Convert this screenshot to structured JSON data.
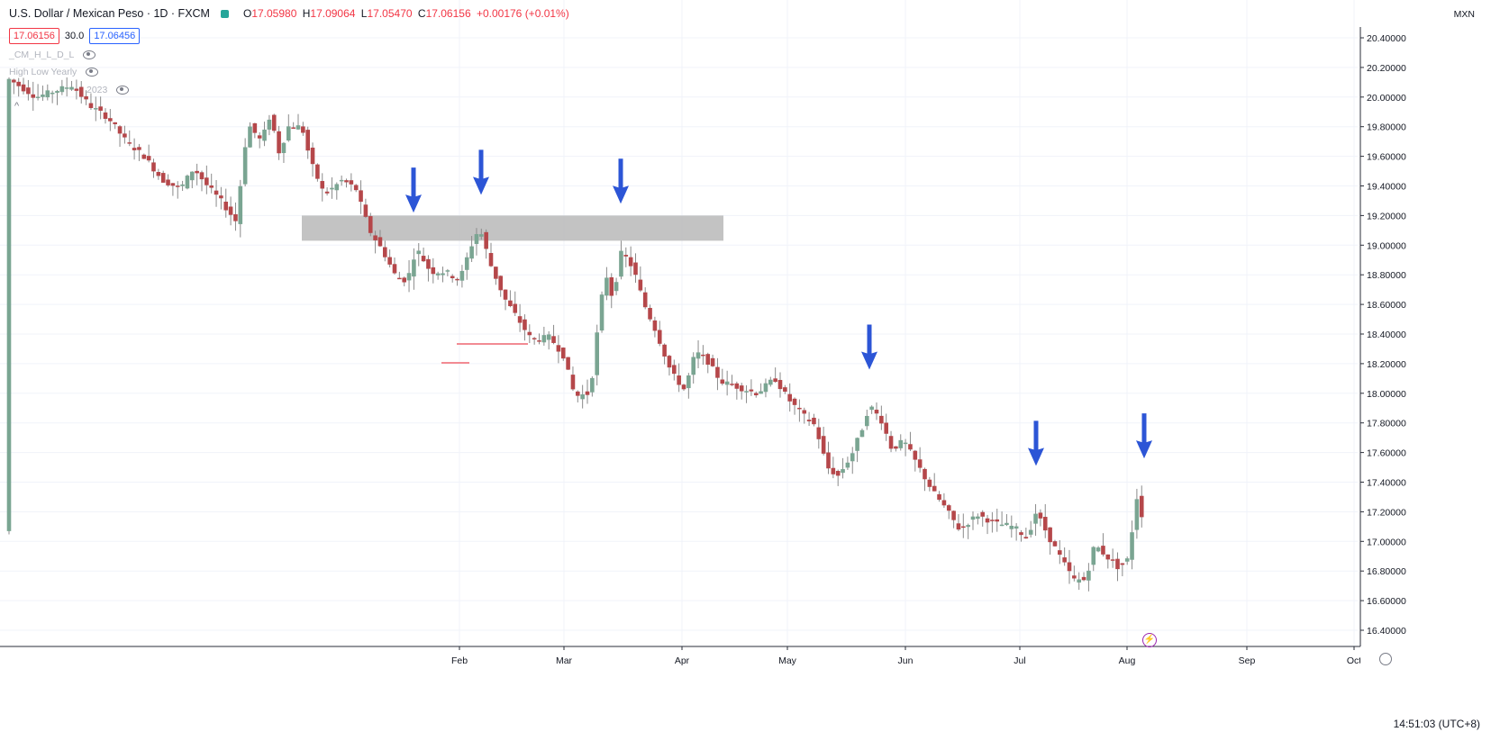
{
  "header": {
    "symbol": "U.S. Dollar / Mexican Peso · 1D · FXCM",
    "open_label": "O",
    "open": "17.05980",
    "high_label": "H",
    "high": "17.09064",
    "low_label": "L",
    "low": "17.05470",
    "close_label": "C",
    "close": "17.06156",
    "change": "+0.00176 (+0.01%)"
  },
  "prices": {
    "bid": "17.06156",
    "spread": "30.0",
    "ask": "17.06456"
  },
  "indicators": [
    "_CM_H_L_D_L",
    "High Low Yearly",
    "2023"
  ],
  "currency": "MXN",
  "clock": "14:51:03 (UTC+8)",
  "colors": {
    "up": "#7aa592",
    "down": "#b5474a",
    "zone": "#b8b8b8",
    "arrow": "#2c55d6",
    "line": "#f28b93"
  },
  "icons": [
    "eye-icon",
    "chevron-up-icon",
    "lightning-icon",
    "gear-icon"
  ],
  "chart_data": {
    "type": "candlestick",
    "y_axis": {
      "min": 16.4,
      "max": 20.4,
      "step": 0.2,
      "labels": [
        "20.40000",
        "20.20000",
        "20.00000",
        "19.80000",
        "19.60000",
        "19.40000",
        "19.20000",
        "19.00000",
        "18.80000",
        "18.60000",
        "18.40000",
        "18.20000",
        "18.00000",
        "17.80000",
        "17.60000",
        "17.40000",
        "17.20000",
        "17.00000",
        "16.80000",
        "16.60000",
        "16.40000"
      ]
    },
    "x_axis": {
      "labels": [
        "Feb",
        "Mar",
        "Apr",
        "May",
        "Jun",
        "Jul",
        "Aug",
        "Sep",
        "Oct"
      ],
      "positions": [
        510,
        626,
        757,
        874,
        1005,
        1132,
        1251,
        1384,
        1503
      ]
    },
    "resistance_zone": {
      "from": 19.03,
      "to": 19.2,
      "x_start": 335,
      "x_end": 803
    },
    "arrows": [
      {
        "x": 459,
        "tip": 19.22
      },
      {
        "x": 534,
        "tip": 19.34
      },
      {
        "x": 689,
        "tip": 19.28
      },
      {
        "x": 965,
        "tip": 18.16
      },
      {
        "x": 1150,
        "tip": 17.51
      },
      {
        "x": 1270,
        "tip": 17.56
      }
    ],
    "trend_path": [
      [
        10,
        20.12
      ],
      [
        40,
        20.0
      ],
      [
        80,
        20.08
      ],
      [
        100,
        19.94
      ],
      [
        120,
        19.86
      ],
      [
        140,
        19.7
      ],
      [
        160,
        19.6
      ],
      [
        180,
        19.44
      ],
      [
        200,
        19.38
      ],
      [
        215,
        19.52
      ],
      [
        230,
        19.4
      ],
      [
        245,
        19.3
      ],
      [
        262,
        19.16
      ],
      [
        275,
        19.82
      ],
      [
        290,
        19.7
      ],
      [
        300,
        19.88
      ],
      [
        310,
        19.62
      ],
      [
        320,
        19.8
      ],
      [
        335,
        19.8
      ],
      [
        345,
        19.56
      ],
      [
        360,
        19.34
      ],
      [
        380,
        19.44
      ],
      [
        395,
        19.38
      ],
      [
        410,
        19.1
      ],
      [
        425,
        18.96
      ],
      [
        440,
        18.78
      ],
      [
        452,
        18.76
      ],
      [
        462,
        18.98
      ],
      [
        478,
        18.82
      ],
      [
        495,
        18.82
      ],
      [
        510,
        18.76
      ],
      [
        522,
        18.98
      ],
      [
        532,
        19.12
      ],
      [
        545,
        18.86
      ],
      [
        560,
        18.64
      ],
      [
        575,
        18.5
      ],
      [
        590,
        18.36
      ],
      [
        610,
        18.38
      ],
      [
        625,
        18.26
      ],
      [
        638,
        17.98
      ],
      [
        655,
        18.0
      ],
      [
        665,
        18.52
      ],
      [
        672,
        18.82
      ],
      [
        680,
        18.64
      ],
      [
        690,
        18.96
      ],
      [
        703,
        18.84
      ],
      [
        715,
        18.6
      ],
      [
        728,
        18.42
      ],
      [
        745,
        18.14
      ],
      [
        760,
        18.02
      ],
      [
        772,
        18.28
      ],
      [
        785,
        18.22
      ],
      [
        800,
        18.08
      ],
      [
        820,
        18.04
      ],
      [
        840,
        18.0
      ],
      [
        860,
        18.1
      ],
      [
        875,
        17.96
      ],
      [
        890,
        17.86
      ],
      [
        905,
        17.78
      ],
      [
        918,
        17.5
      ],
      [
        930,
        17.44
      ],
      [
        945,
        17.58
      ],
      [
        958,
        17.78
      ],
      [
        965,
        17.92
      ],
      [
        978,
        17.82
      ],
      [
        990,
        17.62
      ],
      [
        1003,
        17.68
      ],
      [
        1020,
        17.5
      ],
      [
        1035,
        17.34
      ],
      [
        1050,
        17.22
      ],
      [
        1065,
        17.08
      ],
      [
        1085,
        17.18
      ],
      [
        1105,
        17.12
      ],
      [
        1125,
        17.1
      ],
      [
        1140,
        17.02
      ],
      [
        1150,
        17.2
      ],
      [
        1165,
        17.02
      ],
      [
        1180,
        16.86
      ],
      [
        1192,
        16.74
      ],
      [
        1205,
        16.74
      ],
      [
        1215,
        16.98
      ],
      [
        1228,
        16.9
      ],
      [
        1242,
        16.82
      ],
      [
        1252,
        16.88
      ],
      [
        1262,
        17.3
      ],
      [
        1272,
        17.07
      ]
    ]
  }
}
